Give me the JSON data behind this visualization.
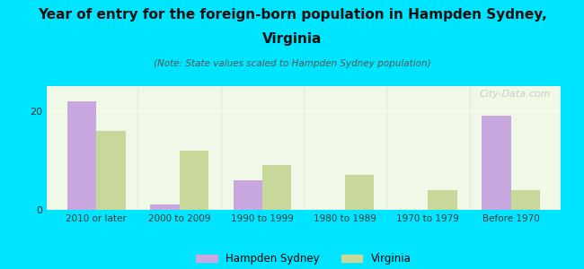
{
  "categories": [
    "2010 or later",
    "2000 to 2009",
    "1990 to 1999",
    "1980 to 1989",
    "1970 to 1979",
    "Before 1970"
  ],
  "hampden_sydney": [
    22,
    1,
    6,
    0,
    0,
    19
  ],
  "virginia": [
    16,
    12,
    9,
    7,
    4,
    4
  ],
  "hampden_color": "#c9a8e0",
  "virginia_color": "#c8d89a",
  "title_line1": "Year of entry for the foreign-born population in Hampden Sydney,",
  "title_line2": "Virginia",
  "subtitle": "(Note: State values scaled to Hampden Sydney population)",
  "legend_hampden": "Hampden Sydney",
  "legend_virginia": "Virginia",
  "background_outer": "#00e5ff",
  "background_chart": "#f0f8e8",
  "ylim": [
    0,
    25
  ],
  "yticks": [
    0,
    20
  ],
  "bar_width": 0.35,
  "watermark": "City-Data.com"
}
